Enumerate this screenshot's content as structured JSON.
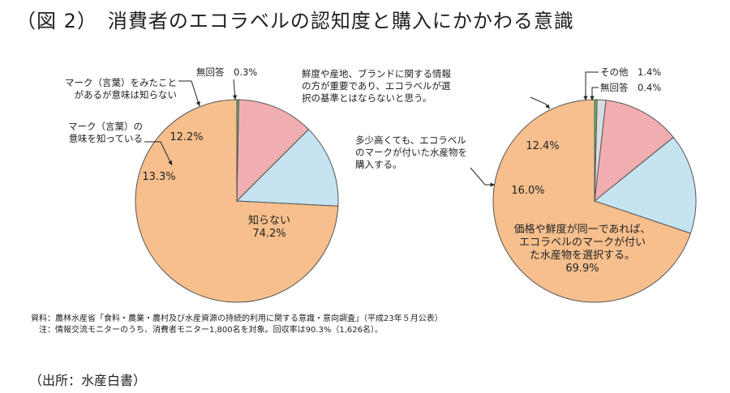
{
  "title": "（図 2）　消費者のエコラベルの認知度と購入にかかわる意識",
  "chart_data": [
    {
      "type": "pie",
      "slices": [
        {
          "label": "知らない",
          "value": 74.2,
          "color": "#f6bf8d"
        },
        {
          "label": "マーク（言葉）の意味を知っている",
          "value": 13.3,
          "color": "#c5e3f1"
        },
        {
          "label": "マーク（言葉）をみたことがあるが意味は知らない",
          "value": 12.2,
          "color": "#f1aeb1"
        },
        {
          "label": "無回答",
          "value": 0.3,
          "color": "#5fbf63"
        }
      ],
      "slice_label_lines": [
        [
          "知らない",
          "74.2%"
        ],
        [
          "13.3%"
        ],
        [
          "12.2%"
        ],
        []
      ],
      "callouts": [
        {
          "lines": [
            "マーク（言葉）の",
            "意味を知っている"
          ]
        },
        {
          "lines": [
            "マーク（言葉）をみたこと",
            "があるが意味は知らない"
          ]
        },
        {
          "lines": [
            "無回答　0.3%"
          ]
        }
      ]
    },
    {
      "type": "pie",
      "slices": [
        {
          "label": "価格や鮮度が同一であれば、エコラベルのマークが付いた水産物を選択する。",
          "value": 69.9,
          "color": "#f6bf8d"
        },
        {
          "label": "多少高くても、エコラベルのマークが付いた水産物を購入する。",
          "value": 16.0,
          "color": "#c5e3f1"
        },
        {
          "label": "鮮度や産地、ブランドに関する情報の方が重要であり、エコラベルが選択の基準とはならないと思う。",
          "value": 12.4,
          "color": "#f1aeb1"
        },
        {
          "label": "その他",
          "value": 1.4,
          "color": "#d9dde3"
        },
        {
          "label": "無回答",
          "value": 0.4,
          "color": "#5fbf63"
        }
      ],
      "slice_label_lines": [
        [
          "価格や鮮度が同一であれば、",
          "エコラベルのマークが付い",
          "た水産物を選択する。",
          "69.9%"
        ],
        [
          "16.0%"
        ],
        [
          "12.4%"
        ],
        [],
        []
      ],
      "callouts": [
        {
          "lines": [
            "多少高くても、エコラベル",
            "のマークが付いた水産物を",
            "購入する。"
          ]
        },
        {
          "lines": [
            "鮮度や産地、ブランドに関する情報",
            "の方が重要であり、エコラベルが選",
            "択の基準とはならないと思う。"
          ]
        },
        {
          "lines": [
            "その他　1.4%"
          ]
        },
        {
          "lines": [
            "無回答　0.4%"
          ]
        }
      ]
    }
  ],
  "notes": [
    "資料：農林水産省「食料・農業・農村及び水産資源の持続的利用に関する意識・意向調査」（平成23年５月公表）",
    "注：情報交流モニターのうち、消費者モニター1,800名を対象。回収率は90.3%（1,626名）。"
  ],
  "source": "（出所：水産白書）"
}
